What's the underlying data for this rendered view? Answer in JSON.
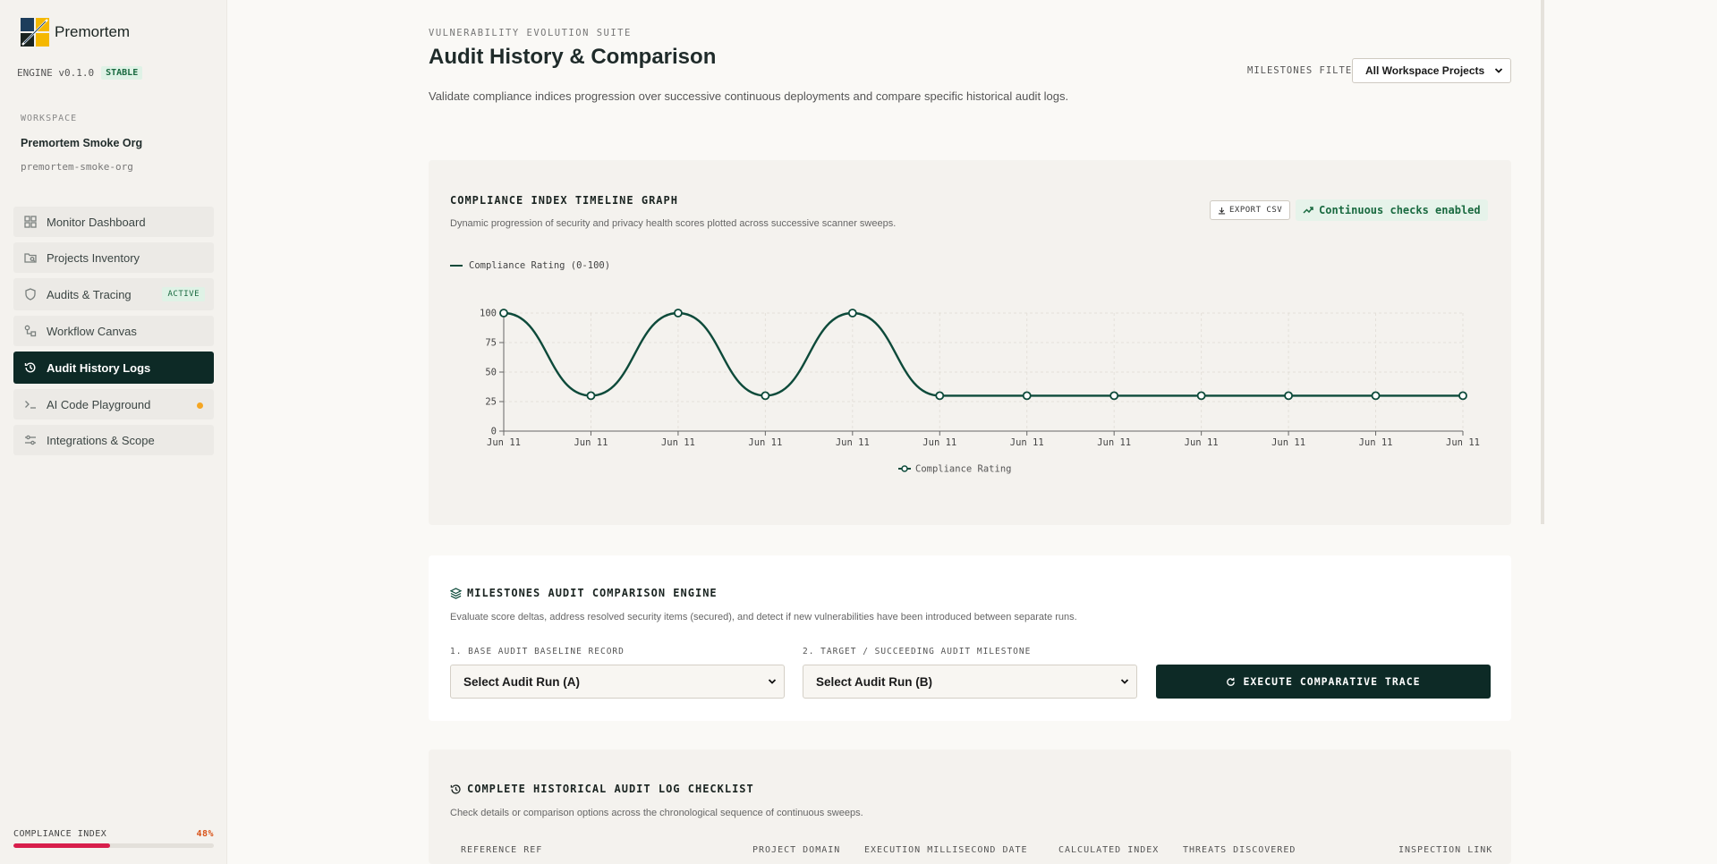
{
  "brand": {
    "name": "Premortem",
    "colors": {
      "dark": "#0d2a26",
      "accent_yellow": "#f5b800",
      "danger": "#d81e4b"
    }
  },
  "engine": {
    "label": "ENGINE v0.1.0",
    "badge": "STABLE"
  },
  "workspace": {
    "label": "WORKSPACE",
    "name": "Premortem Smoke Org",
    "slug": "premortem-smoke-org"
  },
  "nav": [
    {
      "label": "Monitor Dashboard",
      "icon": "grid-icon"
    },
    {
      "label": "Projects Inventory",
      "icon": "folder-search-icon"
    },
    {
      "label": "Audits & Tracing",
      "icon": "shield-icon",
      "badge": "ACTIVE"
    },
    {
      "label": "Workflow Canvas",
      "icon": "workflow-icon"
    },
    {
      "label": "Audit History Logs",
      "icon": "history-icon",
      "active": true
    },
    {
      "label": "AI Code Playground",
      "icon": "terminal-icon",
      "dot": true
    },
    {
      "label": "Integrations & Scope",
      "icon": "sliders-icon"
    }
  ],
  "compliance": {
    "label": "COMPLIANCE INDEX",
    "value_text": "48%",
    "value": 0.48
  },
  "header": {
    "eyebrow": "VULNERABILITY EVOLUTION SUITE",
    "title": "Audit History & Comparison",
    "subtitle": "Validate compliance indices progression over successive continuous deployments and compare specific historical audit logs.",
    "filter_label": "MILESTONES FILTER:",
    "filter_value": "All Workspace Projects"
  },
  "timeline": {
    "title": "COMPLIANCE INDEX TIMELINE GRAPH",
    "desc": "Dynamic progression of security and privacy health scores plotted across successive scanner sweeps.",
    "export_label": "EXPORT CSV",
    "checks_label": "Continuous checks enabled",
    "legend_top": "Compliance Rating (0-100)",
    "legend_bottom": "Compliance Rating"
  },
  "chart_data": {
    "type": "line",
    "x": [
      "Jun 11",
      "Jun 11",
      "Jun 11",
      "Jun 11",
      "Jun 11",
      "Jun 11",
      "Jun 11",
      "Jun 11",
      "Jun 11",
      "Jun 11",
      "Jun 11",
      "Jun 11"
    ],
    "series": [
      {
        "name": "Compliance Rating",
        "values": [
          100,
          30,
          100,
          30,
          100,
          30,
          30,
          30,
          30,
          30,
          30,
          30
        ],
        "color": "#0d4a3a"
      }
    ],
    "yticks": [
      0,
      25,
      50,
      75,
      100
    ],
    "ylim": [
      0,
      100
    ],
    "grid": true,
    "legend": "bottom"
  },
  "comparison": {
    "title": "MILESTONES AUDIT COMPARISON ENGINE",
    "desc": "Evaluate score deltas, address resolved security items (secured), and detect if new vulnerabilities have been introduced between separate runs.",
    "base_label": "1. BASE AUDIT BASELINE RECORD",
    "base_value": "Select Audit Run (A)",
    "target_label": "2. TARGET / SUCCEEDING AUDIT MILESTONE",
    "target_value": "Select Audit Run (B)",
    "exec_label": "EXECUTE COMPARATIVE TRACE"
  },
  "checklist": {
    "title": "COMPLETE HISTORICAL AUDIT LOG CHECKLIST",
    "desc": "Check details or comparison options across the chronological sequence of continuous sweeps.",
    "columns": [
      "REFERENCE REF",
      "PROJECT DOMAIN",
      "EXECUTION MILLISECOND DATE",
      "CALCULATED INDEX",
      "THREATS DISCOVERED",
      "INSPECTION LINK"
    ]
  }
}
